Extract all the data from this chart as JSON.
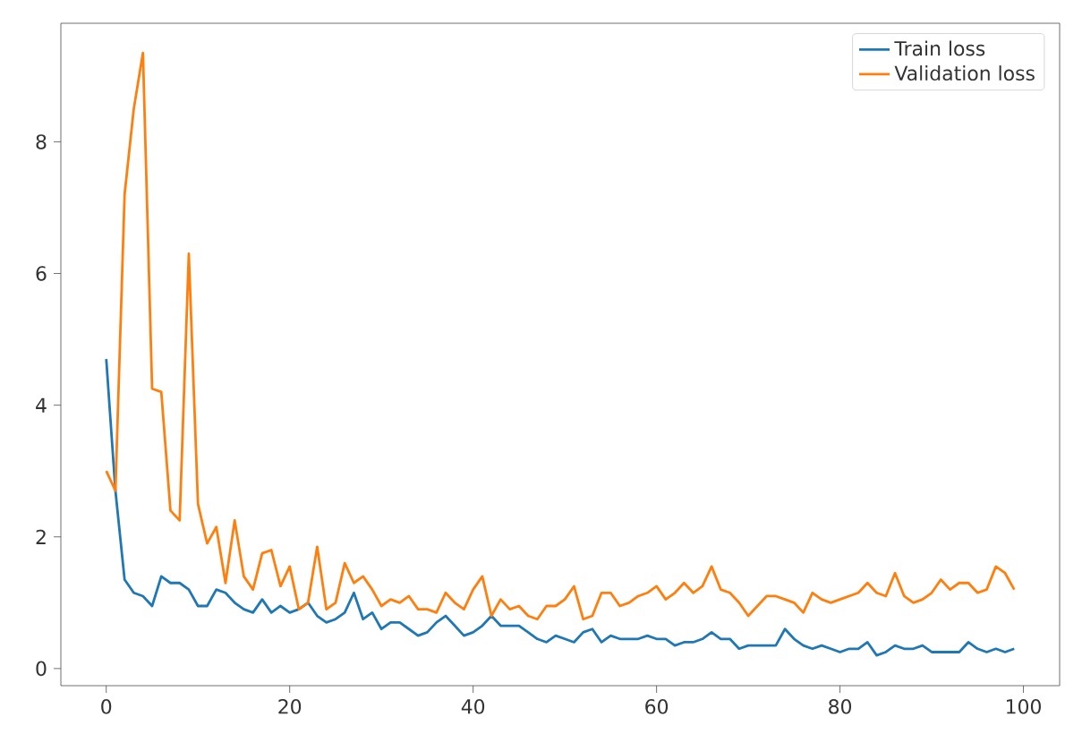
{
  "chart_data": {
    "type": "line",
    "x": [
      0,
      1,
      2,
      3,
      4,
      5,
      6,
      7,
      8,
      9,
      10,
      11,
      12,
      13,
      14,
      15,
      16,
      17,
      18,
      19,
      20,
      21,
      22,
      23,
      24,
      25,
      26,
      27,
      28,
      29,
      30,
      31,
      32,
      33,
      34,
      35,
      36,
      37,
      38,
      39,
      40,
      41,
      42,
      43,
      44,
      45,
      46,
      47,
      48,
      49,
      50,
      51,
      52,
      53,
      54,
      55,
      56,
      57,
      58,
      59,
      60,
      61,
      62,
      63,
      64,
      65,
      66,
      67,
      68,
      69,
      70,
      71,
      72,
      73,
      74,
      75,
      76,
      77,
      78,
      79,
      80,
      81,
      82,
      83,
      84,
      85,
      86,
      87,
      88,
      89,
      90,
      91,
      92,
      93,
      94,
      95,
      96,
      97,
      98,
      99
    ],
    "series": [
      {
        "name": "Train loss",
        "color": "#1f77b4",
        "values": [
          4.7,
          2.7,
          1.35,
          1.15,
          1.1,
          0.95,
          1.4,
          1.3,
          1.3,
          1.2,
          0.95,
          0.95,
          1.2,
          1.15,
          1.0,
          0.9,
          0.85,
          1.05,
          0.85,
          0.95,
          0.85,
          0.9,
          1.0,
          0.8,
          0.7,
          0.75,
          0.85,
          1.15,
          0.75,
          0.85,
          0.6,
          0.7,
          0.7,
          0.6,
          0.5,
          0.55,
          0.7,
          0.8,
          0.65,
          0.5,
          0.55,
          0.65,
          0.8,
          0.65,
          0.65,
          0.65,
          0.55,
          0.45,
          0.4,
          0.5,
          0.45,
          0.4,
          0.55,
          0.6,
          0.4,
          0.5,
          0.45,
          0.45,
          0.45,
          0.5,
          0.45,
          0.45,
          0.35,
          0.4,
          0.4,
          0.45,
          0.55,
          0.45,
          0.45,
          0.3,
          0.35,
          0.35,
          0.35,
          0.35,
          0.6,
          0.45,
          0.35,
          0.3,
          0.35,
          0.3,
          0.25,
          0.3,
          0.3,
          0.4,
          0.2,
          0.25,
          0.35,
          0.3,
          0.3,
          0.35,
          0.25,
          0.25,
          0.25,
          0.25,
          0.4,
          0.3,
          0.25,
          0.3,
          0.25,
          0.3
        ]
      },
      {
        "name": "Validation loss",
        "color": "#ff7f0e",
        "values": [
          3.0,
          2.7,
          7.2,
          8.5,
          9.35,
          4.25,
          4.2,
          2.4,
          2.25,
          6.3,
          2.5,
          1.9,
          2.15,
          1.3,
          2.25,
          1.4,
          1.2,
          1.75,
          1.8,
          1.25,
          1.55,
          0.9,
          1.0,
          1.85,
          0.9,
          1.0,
          1.6,
          1.3,
          1.4,
          1.2,
          0.95,
          1.05,
          1.0,
          1.1,
          0.9,
          0.9,
          0.85,
          1.15,
          1.0,
          0.9,
          1.2,
          1.4,
          0.8,
          1.05,
          0.9,
          0.95,
          0.8,
          0.75,
          0.95,
          0.95,
          1.05,
          1.25,
          0.75,
          0.8,
          1.15,
          1.15,
          0.95,
          1.0,
          1.1,
          1.15,
          1.25,
          1.05,
          1.15,
          1.3,
          1.15,
          1.25,
          1.55,
          1.2,
          1.15,
          1.0,
          0.8,
          0.95,
          1.1,
          1.1,
          1.05,
          1.0,
          0.85,
          1.15,
          1.05,
          1.0,
          1.05,
          1.1,
          1.15,
          1.3,
          1.15,
          1.1,
          1.45,
          1.1,
          1.0,
          1.05,
          1.15,
          1.35,
          1.2,
          1.3,
          1.3,
          1.15,
          1.2,
          1.55,
          1.45,
          1.2
        ]
      }
    ],
    "xlim": [
      -4.95,
      103.95
    ],
    "ylim": [
      -0.26,
      9.8
    ],
    "xticks": [
      0,
      20,
      40,
      60,
      80,
      100
    ],
    "yticks": [
      0,
      2,
      4,
      6,
      8
    ],
    "legend": "top right",
    "grid": false
  }
}
